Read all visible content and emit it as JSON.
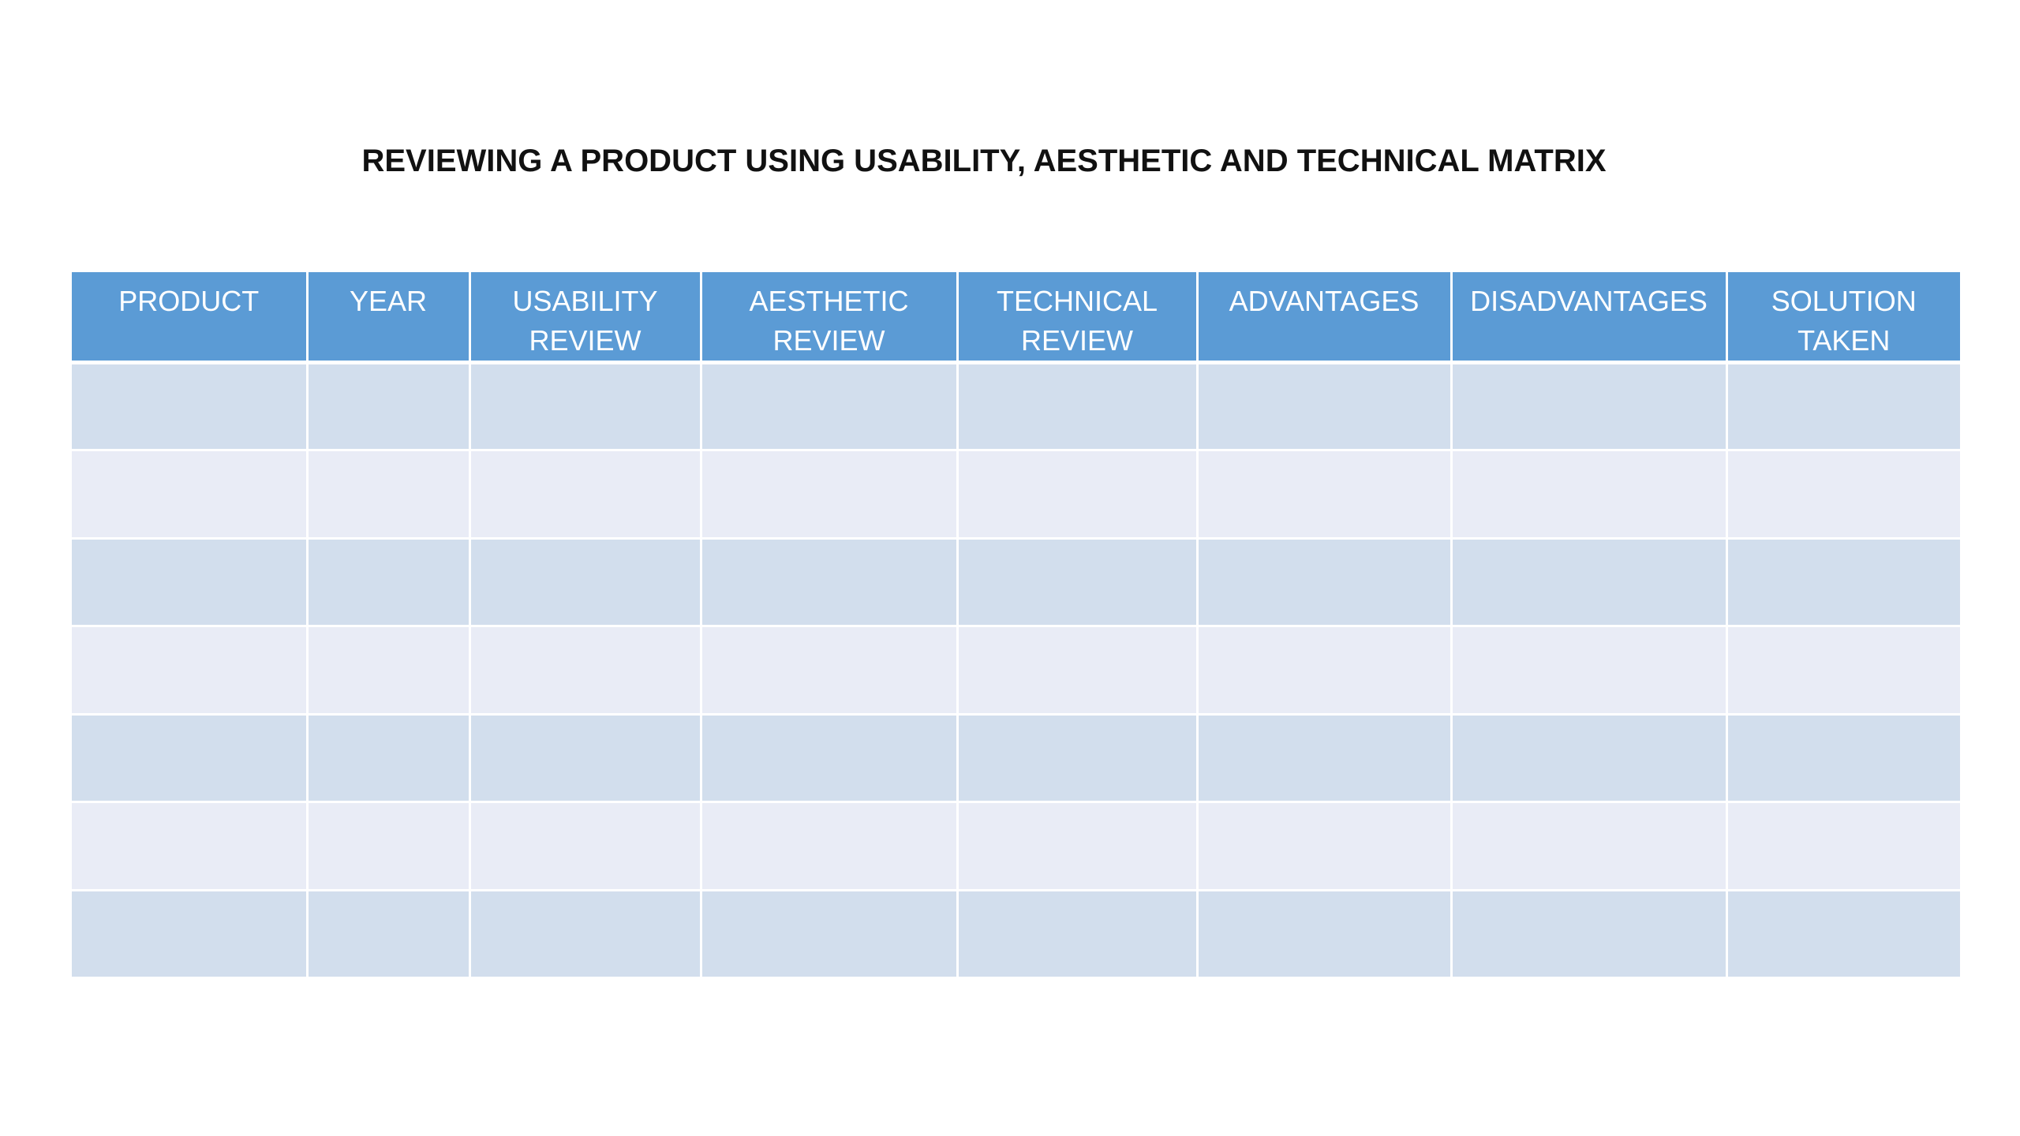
{
  "slide": {
    "title": "REVIEWING A PRODUCT USING USABILITY, AESTHETIC AND TECHNICAL MATRIX"
  },
  "table": {
    "headers": [
      {
        "line1": "PRODUCT",
        "line2": ""
      },
      {
        "line1": "YEAR",
        "line2": ""
      },
      {
        "line1": "USABILITY",
        "line2": "REVIEW"
      },
      {
        "line1": "AESTHETIC",
        "line2": "REVIEW"
      },
      {
        "line1": "TECHNICAL",
        "line2": "REVIEW"
      },
      {
        "line1": "ADVANTAGES",
        "line2": ""
      },
      {
        "line1": "DISADVANTAGES",
        "line2": ""
      },
      {
        "line1": "SOLUTION",
        "line2": "TAKEN"
      }
    ],
    "rows": [
      [
        "",
        "",
        "",
        "",
        "",
        "",
        "",
        ""
      ],
      [
        "",
        "",
        "",
        "",
        "",
        "",
        "",
        ""
      ],
      [
        "",
        "",
        "",
        "",
        "",
        "",
        "",
        ""
      ],
      [
        "",
        "",
        "",
        "",
        "",
        "",
        "",
        ""
      ],
      [
        "",
        "",
        "",
        "",
        "",
        "",
        "",
        ""
      ],
      [
        "",
        "",
        "",
        "",
        "",
        "",
        "",
        ""
      ],
      [
        "",
        "",
        "",
        "",
        "",
        "",
        "",
        ""
      ]
    ],
    "colors": {
      "header_bg": "#5b9bd5",
      "header_text": "#ffffff",
      "row_band_1": "#d2deed",
      "row_band_2": "#e9ecf6"
    }
  }
}
